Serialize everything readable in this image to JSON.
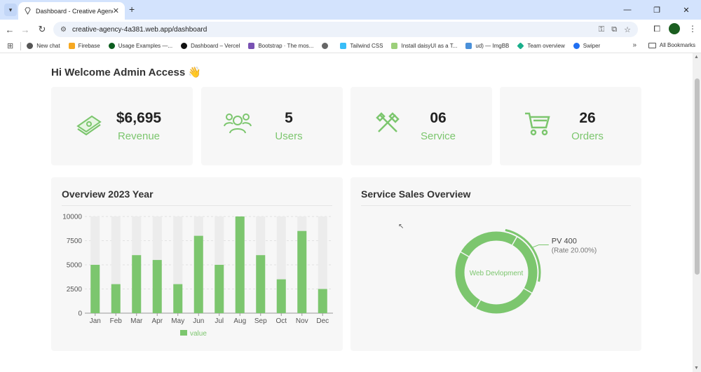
{
  "browser": {
    "tab_title": "Dashboard - Creative Agency",
    "url": "creative-agency-4a381.web.app/dashboard",
    "bookmarks": [
      {
        "label": "New chat",
        "color": "#555555"
      },
      {
        "label": "Firebase",
        "color": "#f6a821"
      },
      {
        "label": "Usage Examples —...",
        "color": "#0b5d1e"
      },
      {
        "label": "Dashboard – Vercel",
        "color": "#111111"
      },
      {
        "label": "Bootstrap · The mos...",
        "color": "#7952b3"
      },
      {
        "label": "",
        "color": "#666666"
      },
      {
        "label": "Tailwind CSS",
        "color": "#38bdf8"
      },
      {
        "label": "Install daisyUI as a T...",
        "color": "#9ccf7a"
      },
      {
        "label": "ud) — ImgBB",
        "color": "#4a90d9"
      },
      {
        "label": "Team overview",
        "color": "#1aaf8b"
      },
      {
        "label": "Swiper",
        "color": "#1f6ff2"
      }
    ],
    "all_bookmarks": "All Bookmarks"
  },
  "page": {
    "welcome": "Hi Welcome Admin Access 👋",
    "stats": [
      {
        "value": "$6,695",
        "label": "Revenue",
        "icon": "money-icon"
      },
      {
        "value": "5",
        "label": "Users",
        "icon": "users-icon"
      },
      {
        "value": "06",
        "label": "Service",
        "icon": "tools-icon"
      },
      {
        "value": "26",
        "label": "Orders",
        "icon": "cart-icon"
      }
    ],
    "overview_title": "Overview 2023 Year",
    "service_title": "Service Sales Overview"
  },
  "colors": {
    "accent": "#7cc66e",
    "bar_bg": "#ececec"
  },
  "chart_data": [
    {
      "type": "bar",
      "title": "Overview 2023 Year",
      "categories": [
        "Jan",
        "Feb",
        "Mar",
        "Apr",
        "May",
        "Jun",
        "Jul",
        "Aug",
        "Sep",
        "Oct",
        "Nov",
        "Dec"
      ],
      "series": [
        {
          "name": "value",
          "values": [
            5000,
            3000,
            6000,
            5500,
            3000,
            8000,
            5000,
            10000,
            6000,
            3500,
            8500,
            2500
          ]
        }
      ],
      "ylim": [
        0,
        10000
      ],
      "yticks": [
        0,
        2500,
        5000,
        7500,
        10000
      ],
      "legend": "bottom"
    },
    {
      "type": "pie",
      "title": "Service Sales Overview",
      "slices": [
        {
          "name": "Web Devlopment",
          "value": 400
        }
      ],
      "callout_title": "PV 400",
      "callout_sub": "(Rate 20.00%)",
      "center_label": "Web Devlopment"
    }
  ]
}
